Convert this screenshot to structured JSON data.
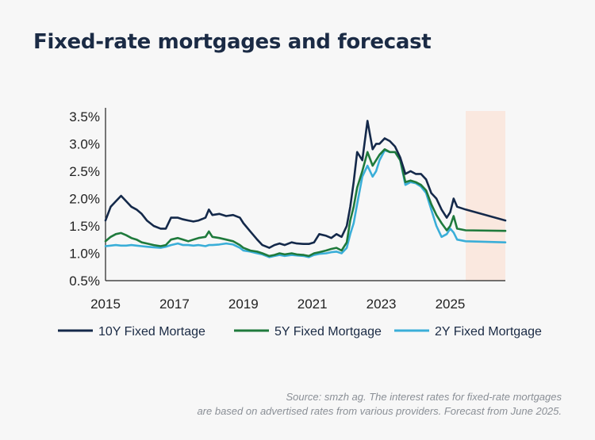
{
  "title": "Fixed-rate mortgages and forecast",
  "source": {
    "line1": "Source: smzh ag. The interest rates for fixed-rate mortgages",
    "line2": "are based on advertised rates from various providers. Forecast from June 2025."
  },
  "colors": {
    "ten_year": "#14294a",
    "five_year": "#1f7a3c",
    "two_year": "#3aaed8",
    "forecast_shade": "#fae8df",
    "axis": "#222222"
  },
  "chart_data": {
    "type": "line",
    "xlim": [
      2015,
      2026.6
    ],
    "ylim": [
      0.5,
      3.6
    ],
    "y_ticks": [
      0.5,
      1.0,
      1.5,
      2.0,
      2.5,
      3.0,
      3.5
    ],
    "y_tick_labels": [
      "0.5%",
      "1.0%",
      "1.5%",
      "2.0%",
      "2.5%",
      "3.0%",
      "3.5%"
    ],
    "x_ticks": [
      2015,
      2017,
      2019,
      2021,
      2023,
      2025
    ],
    "x_tick_labels": [
      "2015",
      "2017",
      "2019",
      "2021",
      "2023",
      "2025"
    ],
    "forecast_start": 2025.45,
    "legend_position": "bottom",
    "series": [
      {
        "name": "10Y Fixed Mortage",
        "x": [
          2015.0,
          2015.15,
          2015.3,
          2015.45,
          2015.6,
          2015.75,
          2015.9,
          2016.05,
          2016.2,
          2016.4,
          2016.6,
          2016.75,
          2016.9,
          2017.1,
          2017.25,
          2017.4,
          2017.55,
          2017.7,
          2017.9,
          2018.0,
          2018.1,
          2018.3,
          2018.5,
          2018.7,
          2018.9,
          2019.0,
          2019.2,
          2019.4,
          2019.55,
          2019.75,
          2019.9,
          2020.05,
          2020.2,
          2020.4,
          2020.55,
          2020.75,
          2020.9,
          2021.05,
          2021.2,
          2021.4,
          2021.55,
          2021.7,
          2021.85,
          2022.0,
          2022.1,
          2022.2,
          2022.3,
          2022.45,
          2022.6,
          2022.75,
          2022.85,
          2022.95,
          2023.1,
          2023.25,
          2023.4,
          2023.55,
          2023.7,
          2023.85,
          2024.0,
          2024.15,
          2024.3,
          2024.45,
          2024.6,
          2024.75,
          2024.9,
          2025.0,
          2025.1,
          2025.2,
          2025.45,
          2026.6
        ],
        "values": [
          1.6,
          1.85,
          1.95,
          2.05,
          1.95,
          1.85,
          1.8,
          1.72,
          1.6,
          1.5,
          1.45,
          1.45,
          1.65,
          1.65,
          1.62,
          1.6,
          1.58,
          1.6,
          1.65,
          1.8,
          1.7,
          1.72,
          1.68,
          1.7,
          1.65,
          1.55,
          1.4,
          1.25,
          1.15,
          1.1,
          1.15,
          1.18,
          1.15,
          1.2,
          1.18,
          1.17,
          1.17,
          1.2,
          1.35,
          1.32,
          1.28,
          1.35,
          1.3,
          1.5,
          1.85,
          2.3,
          2.85,
          2.7,
          3.42,
          2.9,
          3.0,
          3.0,
          3.1,
          3.05,
          2.95,
          2.75,
          2.45,
          2.5,
          2.45,
          2.45,
          2.35,
          2.1,
          2.0,
          1.8,
          1.65,
          1.75,
          2.0,
          1.85,
          1.8,
          1.6
        ]
      },
      {
        "name": "5Y Fixed Mortgage",
        "x": [
          2015.0,
          2015.15,
          2015.3,
          2015.45,
          2015.6,
          2015.75,
          2015.9,
          2016.05,
          2016.2,
          2016.4,
          2016.6,
          2016.75,
          2016.9,
          2017.1,
          2017.25,
          2017.4,
          2017.55,
          2017.7,
          2017.9,
          2018.0,
          2018.1,
          2018.3,
          2018.5,
          2018.7,
          2018.9,
          2019.0,
          2019.2,
          2019.4,
          2019.55,
          2019.75,
          2019.9,
          2020.05,
          2020.2,
          2020.4,
          2020.55,
          2020.75,
          2020.9,
          2021.05,
          2021.2,
          2021.4,
          2021.55,
          2021.7,
          2021.85,
          2022.0,
          2022.1,
          2022.2,
          2022.3,
          2022.45,
          2022.6,
          2022.75,
          2022.85,
          2022.95,
          2023.1,
          2023.25,
          2023.4,
          2023.55,
          2023.7,
          2023.85,
          2024.0,
          2024.15,
          2024.3,
          2024.45,
          2024.6,
          2024.75,
          2024.9,
          2025.0,
          2025.1,
          2025.2,
          2025.45,
          2026.6
        ],
        "values": [
          1.22,
          1.3,
          1.35,
          1.37,
          1.33,
          1.28,
          1.25,
          1.2,
          1.18,
          1.15,
          1.13,
          1.15,
          1.25,
          1.28,
          1.25,
          1.22,
          1.25,
          1.28,
          1.3,
          1.4,
          1.3,
          1.28,
          1.25,
          1.22,
          1.15,
          1.1,
          1.05,
          1.03,
          1.0,
          0.95,
          0.97,
          1.0,
          0.98,
          1.0,
          0.98,
          0.97,
          0.95,
          1.0,
          1.02,
          1.05,
          1.08,
          1.1,
          1.05,
          1.2,
          1.6,
          1.85,
          2.2,
          2.5,
          2.85,
          2.6,
          2.7,
          2.8,
          2.9,
          2.85,
          2.85,
          2.7,
          2.3,
          2.33,
          2.3,
          2.25,
          2.15,
          1.9,
          1.7,
          1.55,
          1.42,
          1.5,
          1.68,
          1.45,
          1.42,
          1.41
        ]
      },
      {
        "name": "2Y Fixed Mortgage",
        "x": [
          2015.0,
          2015.15,
          2015.3,
          2015.45,
          2015.6,
          2015.75,
          2015.9,
          2016.05,
          2016.2,
          2016.4,
          2016.6,
          2016.75,
          2016.9,
          2017.1,
          2017.25,
          2017.4,
          2017.55,
          2017.7,
          2017.9,
          2018.0,
          2018.1,
          2018.3,
          2018.5,
          2018.7,
          2018.9,
          2019.0,
          2019.2,
          2019.4,
          2019.55,
          2019.75,
          2019.9,
          2020.05,
          2020.2,
          2020.4,
          2020.55,
          2020.75,
          2020.9,
          2021.05,
          2021.2,
          2021.4,
          2021.55,
          2021.7,
          2021.85,
          2022.0,
          2022.1,
          2022.2,
          2022.3,
          2022.45,
          2022.6,
          2022.75,
          2022.85,
          2022.95,
          2023.1,
          2023.25,
          2023.4,
          2023.55,
          2023.7,
          2023.85,
          2024.0,
          2024.15,
          2024.3,
          2024.45,
          2024.6,
          2024.75,
          2024.9,
          2025.0,
          2025.1,
          2025.2,
          2025.45,
          2026.6
        ],
        "values": [
          1.13,
          1.14,
          1.15,
          1.14,
          1.14,
          1.15,
          1.14,
          1.13,
          1.12,
          1.11,
          1.1,
          1.12,
          1.15,
          1.18,
          1.15,
          1.15,
          1.14,
          1.15,
          1.13,
          1.15,
          1.15,
          1.16,
          1.18,
          1.16,
          1.1,
          1.05,
          1.03,
          1.0,
          0.98,
          0.93,
          0.95,
          0.97,
          0.95,
          0.97,
          0.96,
          0.95,
          0.93,
          0.97,
          0.99,
          1.0,
          1.02,
          1.03,
          1.0,
          1.1,
          1.35,
          1.55,
          1.9,
          2.4,
          2.6,
          2.4,
          2.5,
          2.7,
          2.88,
          2.85,
          2.85,
          2.7,
          2.25,
          2.3,
          2.28,
          2.22,
          2.1,
          1.8,
          1.5,
          1.3,
          1.35,
          1.45,
          1.38,
          1.25,
          1.22,
          1.2
        ]
      }
    ]
  }
}
